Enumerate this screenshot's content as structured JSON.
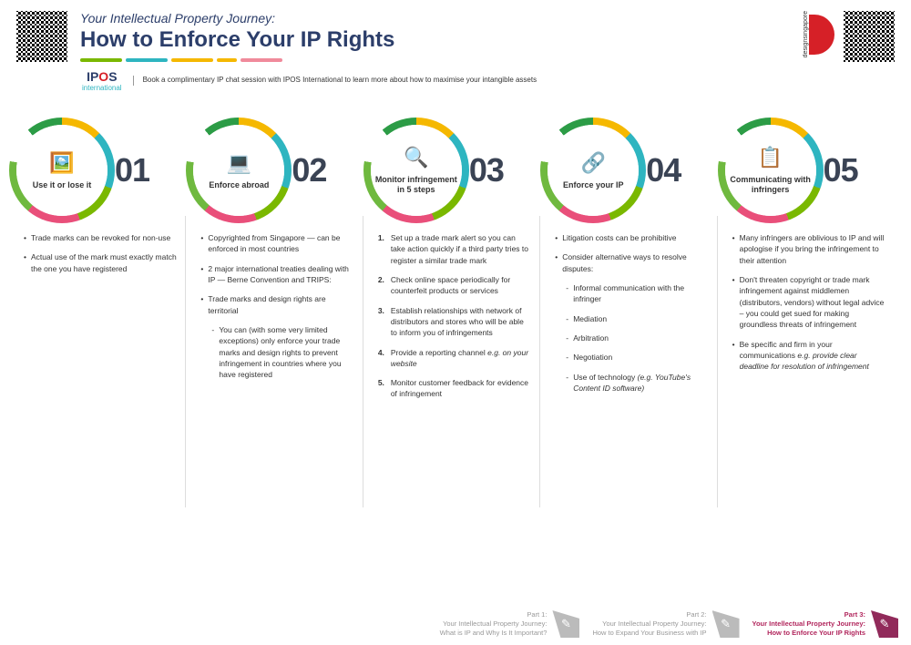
{
  "header": {
    "subtitle": "Your Intellectual Property Journey:",
    "title": "How to Enforce Your IP Rights",
    "book_text": "Book a complimentary IP chat session with IPOS International to learn more about how to maximise your intangible assets"
  },
  "steps": [
    {
      "num": "01",
      "label": "Use it or lose it",
      "icon": "🖼️",
      "bullets": [
        "Trade marks can be revoked for non-use",
        "Actual use of the mark must exactly match the one you have registered"
      ]
    },
    {
      "num": "02",
      "label": "Enforce abroad",
      "icon": "💻",
      "bullets": [
        "Copyrighted from Singapore — can be enforced in most countries",
        "2 major international treaties dealing with IP — Berne Convention and TRIPS:",
        "Trade marks and design rights are territorial"
      ],
      "sub_bullets": [
        "You can (with some very limited exceptions) only enforce your trade marks and design rights to prevent infringement in countries where you have registered"
      ]
    },
    {
      "num": "03",
      "label": "Monitor infringement in 5 steps",
      "icon": "🔍",
      "numbered": [
        "Set up a trade mark alert so you can take action quickly if a third party tries to register a similar trade mark",
        "Check online space periodically for counterfeit products or services",
        "Establish relationships with network of distributors and stores who will be able to inform you of infringements",
        "Provide a reporting channel <em>e.g. on your website</em>",
        "Monitor customer feedback for evidence of infringement"
      ]
    },
    {
      "num": "04",
      "label": "Enforce your IP",
      "icon": "🔗",
      "bullets": [
        "Litigation costs can be prohibitive",
        "Consider alternative ways to resolve disputes:"
      ],
      "sub_bullets": [
        "Informal communication with the infringer",
        "Mediation",
        "Arbitration",
        "Negotiation",
        "Use of technology <em>(e.g. YouTube's Content ID software)</em>"
      ]
    },
    {
      "num": "05",
      "label": "Communicating with infringers",
      "icon": "📋",
      "bullets": [
        "Many infringers are oblivious to IP and will apologise if you bring the infringement to their attention",
        "Don't threaten copyright or trade mark infringement against middlemen (distributors, vendors) without legal advice – you could get sued for making groundless threats of infringement",
        "Be specific and firm in your communications <em>e.g. provide clear deadline for resolution of infringement</em>"
      ]
    }
  ],
  "footer": [
    {
      "label": "Part 1:",
      "title1": "Your Intellectual Property Journey:",
      "title2": "What is IP and Why Is It Important?",
      "badge": "✎"
    },
    {
      "label": "Part 2:",
      "title1": "Your Intellectual Property Journey:",
      "title2": "How to Expand Your Business with IP",
      "badge": "✎"
    },
    {
      "label": "Part 3:",
      "title1": "Your Intellectual Property Journey:",
      "title2": "How to Enforce Your IP Rights",
      "badge": "✎"
    }
  ]
}
